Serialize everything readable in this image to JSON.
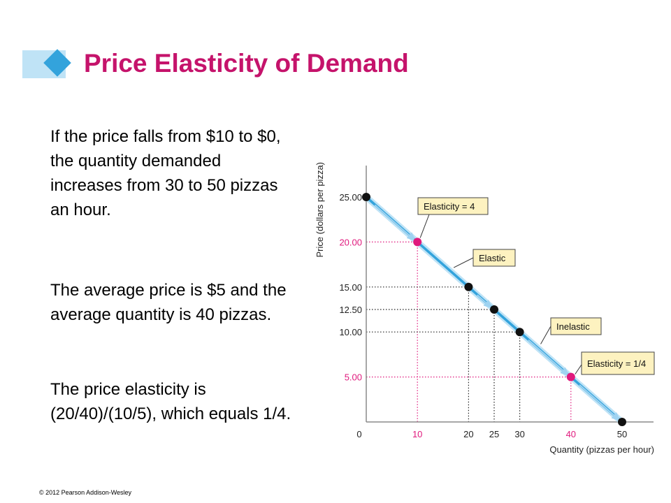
{
  "title": "Price Elasticity of Demand",
  "paragraphs": [
    "If the price falls from $10 to $0, the quantity demanded increases from 30 to 50 pizzas an hour.",
    "The average price is $5 and the average quantity is 40 pizzas.",
    "The price elasticity is (20/40)/(10/5), which equals 1/4."
  ],
  "footer": "© 2012 Pearson Addison-Wesley",
  "colors": {
    "title": "#c5136b",
    "accent": "#33a3dc",
    "highlight": "#e0197d",
    "callout_fill": "#fdf2c0"
  },
  "chart_data": {
    "type": "line",
    "xlabel": "Quantity (pizzas per hour)",
    "ylabel": "Price (dollars per pizza)",
    "xlim": [
      0,
      51
    ],
    "ylim": [
      0,
      27
    ],
    "xticks": [
      {
        "value": 0,
        "label": "0",
        "highlight": false
      },
      {
        "value": 10,
        "label": "10",
        "highlight": true
      },
      {
        "value": 20,
        "label": "20",
        "highlight": false
      },
      {
        "value": 25,
        "label": "25",
        "highlight": false
      },
      {
        "value": 30,
        "label": "30",
        "highlight": false
      },
      {
        "value": 40,
        "label": "40",
        "highlight": true
      },
      {
        "value": 50,
        "label": "50",
        "highlight": false
      }
    ],
    "yticks": [
      {
        "value": 25,
        "label": "25.00",
        "highlight": false
      },
      {
        "value": 20,
        "label": "20.00",
        "highlight": true
      },
      {
        "value": 15,
        "label": "15.00",
        "highlight": false
      },
      {
        "value": 12.5,
        "label": "12.50",
        "highlight": false
      },
      {
        "value": 10,
        "label": "10.00",
        "highlight": false
      },
      {
        "value": 5,
        "label": "5.00",
        "highlight": true
      }
    ],
    "curve": [
      [
        0,
        25
      ],
      [
        50,
        0
      ]
    ],
    "points": [
      {
        "x": 0,
        "y": 25,
        "highlight": false
      },
      {
        "x": 10,
        "y": 20,
        "highlight": true
      },
      {
        "x": 20,
        "y": 15,
        "highlight": false
      },
      {
        "x": 25,
        "y": 12.5,
        "highlight": false
      },
      {
        "x": 30,
        "y": 10,
        "highlight": false
      },
      {
        "x": 40,
        "y": 5,
        "highlight": true
      },
      {
        "x": 50,
        "y": 0,
        "highlight": false
      }
    ],
    "annotations": [
      {
        "label": "Elasticity = 4",
        "x": 10,
        "y": 20
      },
      {
        "label": "Elastic",
        "x": 16,
        "y": 17
      },
      {
        "label": "Inelastic",
        "x": 33,
        "y": 8.5
      },
      {
        "label": "Elasticity = 1/4",
        "x": 40,
        "y": 5
      }
    ]
  }
}
